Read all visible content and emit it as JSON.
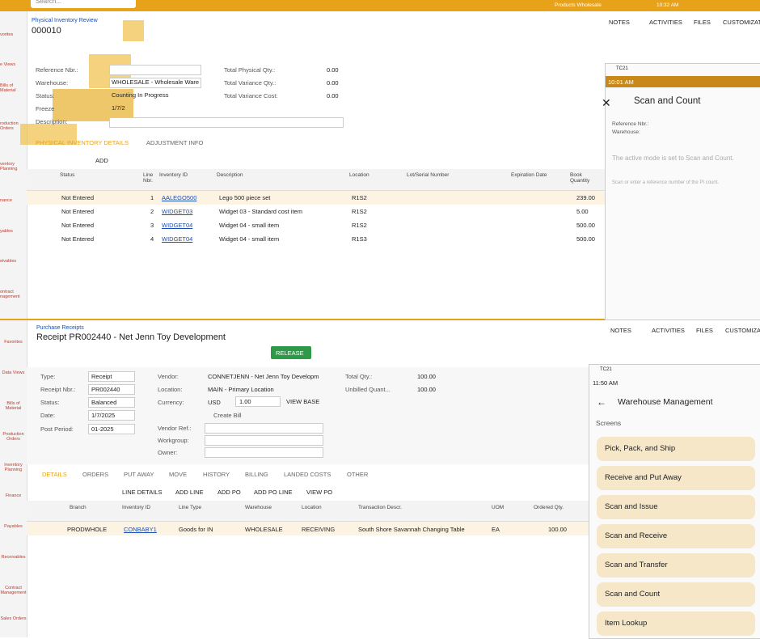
{
  "topbar": {
    "search": "Search...",
    "branch": "Products Wholesale",
    "time": "10:32 AM"
  },
  "sidebar_top": [
    "vorites",
    "e Views",
    "Bills of Material",
    "roduction Orders",
    "ventory Planning",
    "nance",
    "yables",
    "eivables",
    "ontract nagement"
  ],
  "inventory": {
    "breadcrumb": "Physical Inventory Review",
    "id": "000010",
    "actions": [
      "NOTES",
      "ACTIVITIES",
      "FILES",
      "CUSTOMIZATI"
    ],
    "labels": {
      "ref": "Reference Nbr.:",
      "warehouse": "Warehouse:",
      "status": "Status:",
      "freeze": "Freeze",
      "description": "Description:"
    },
    "values": {
      "warehouse": "WHOLESALE - Wholesale Ware",
      "status": "Counting In Progress",
      "freeze": "1/7/2"
    },
    "totals": [
      {
        "label": "Total Physical Qty.:",
        "value": "0.00"
      },
      {
        "label": "Total Variance Qty.:",
        "value": "0.00"
      },
      {
        "label": "Total Variance Cost:",
        "value": "0.00"
      }
    ],
    "tabs": [
      "PHYSICAL INVENTORY DETAILS",
      "ADJUSTMENT INFO"
    ],
    "grid_add": "ADD",
    "columns": [
      "Status",
      "Line Nbr.",
      "Inventory ID",
      "Description",
      "Location",
      "Lot/Serial Number",
      "Expiration Date",
      "Book Quantity"
    ],
    "rows": [
      [
        "Not Entered",
        "1",
        "AALEGO500",
        "Lego 500 piece set",
        "R1S2",
        "",
        "",
        "239.00"
      ],
      [
        "Not Entered",
        "2",
        "WIDGET03",
        "Widget 03 - Standard cost item",
        "R1S2",
        "",
        "",
        "5.00"
      ],
      [
        "Not Entered",
        "3",
        "WIDGET04",
        "Widget 04 - small item",
        "R1S2",
        "",
        "",
        "500.00"
      ],
      [
        "Not Entered",
        "4",
        "WIDGET04",
        "Widget 04 - small item",
        "R1S3",
        "",
        "",
        "500.00"
      ]
    ]
  },
  "mobile_count": {
    "device": "TC21",
    "time": "10:01 AM",
    "title": "Scan and Count",
    "ref": "Reference Nbr.:",
    "warehouse": "Warehouse:",
    "mode": "The active mode is set to Scan and Count.",
    "prompt": "Scan or enter a reference number of the PI count."
  },
  "receipt": {
    "breadcrumb": "Purchase Receipts",
    "title": "Receipt PR002440 - Net Jenn Toy Development",
    "release": "RELEASE",
    "actions": [
      "NOTES",
      "ACTIVITIES",
      "FILES",
      "CUSTOMIZATI"
    ],
    "fields": [
      [
        "Type:",
        "Receipt"
      ],
      [
        "Receipt Nbr.:",
        "PR002440"
      ],
      [
        "Status:",
        "Balanced"
      ],
      [
        "Date:",
        "1/7/2025"
      ],
      [
        "Post Period:",
        "01-2025"
      ]
    ],
    "fields2": [
      [
        "Vendor:",
        "CONNETJENN - Net Jenn Toy Developm"
      ],
      [
        "Location:",
        "MAIN - Primary Location"
      ],
      [
        "Currency:",
        "USD"
      ]
    ],
    "rate": "1.00",
    "view_base": "VIEW BASE",
    "create_bill": "Create Bill",
    "extra": [
      "Vendor Ref.:",
      "Workgroup:",
      "Owner:"
    ],
    "totals": [
      [
        "Total Qty.:",
        "100.00"
      ],
      [
        "Unbilled Quant...",
        "100.00"
      ]
    ],
    "tabs": [
      "DETAILS",
      "ORDERS",
      "PUT AWAY",
      "MOVE",
      "HISTORY",
      "BILLING",
      "LANDED COSTS",
      "OTHER"
    ],
    "grid_actions": [
      "LINE DETAILS",
      "ADD LINE",
      "ADD PO",
      "ADD PO LINE",
      "VIEW PO"
    ],
    "columns": [
      "Branch",
      "Inventory ID",
      "Line Type",
      "Warehouse",
      "Location",
      "Transaction Descr.",
      "UOM",
      "Ordered Qty."
    ],
    "rows": [
      [
        "PRODWHOLE",
        "CONBABY1",
        "Goods for IN",
        "WHOLESALE",
        "RECEIVING",
        "South Shore Savannah Changing Table",
        "EA",
        "100.00"
      ]
    ]
  },
  "sidebar_bottom": [
    "Favorites",
    "Data Views",
    "Bills of Material",
    "Production Orders",
    "Inventory Planning",
    "Finance",
    "Payables",
    "Receivables",
    "Contract Management",
    "Sales Orders"
  ],
  "mobile_wms": {
    "device": "TC21",
    "time": "11:50 AM",
    "title": "Warehouse Management",
    "section": "Screens",
    "items": [
      "Pick, Pack, and Ship",
      "Receive and Put Away",
      "Scan and Issue",
      "Scan and Receive",
      "Scan and Transfer",
      "Scan and Count",
      "Item Lookup"
    ]
  }
}
